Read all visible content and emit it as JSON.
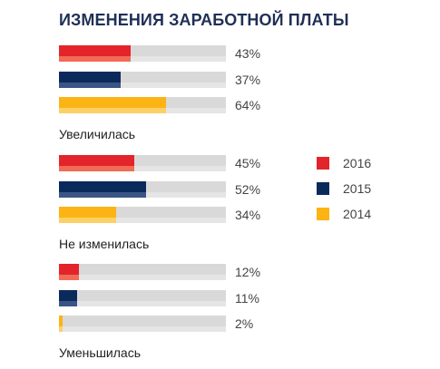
{
  "chart_data": {
    "type": "bar",
    "title": "ИЗМЕНЕНИЯ ЗАРАБОТНОЙ ПЛАТЫ",
    "categories": [
      "Увеличилась",
      "Не изменилась",
      "Уменьшилась"
    ],
    "series": [
      {
        "name": "2016",
        "values": [
          43,
          45,
          12
        ],
        "labels": [
          "43%",
          "45%",
          "12%"
        ],
        "color": "#e3242b",
        "color_light": "#f26b55"
      },
      {
        "name": "2015",
        "values": [
          37,
          52,
          11
        ],
        "labels": [
          "37%",
          "52%",
          "11%"
        ],
        "color": "#0b2a5c",
        "color_light": "#3a5585"
      },
      {
        "name": "2014",
        "values": [
          64,
          34,
          2
        ],
        "labels": [
          "64%",
          "34%",
          "2%"
        ],
        "color": "#fbb414",
        "color_light": "#fdd067"
      }
    ],
    "xlim": [
      0,
      100
    ],
    "orientation": "horizontal",
    "legend_position": "right",
    "track_color": "#d9d9d9"
  }
}
